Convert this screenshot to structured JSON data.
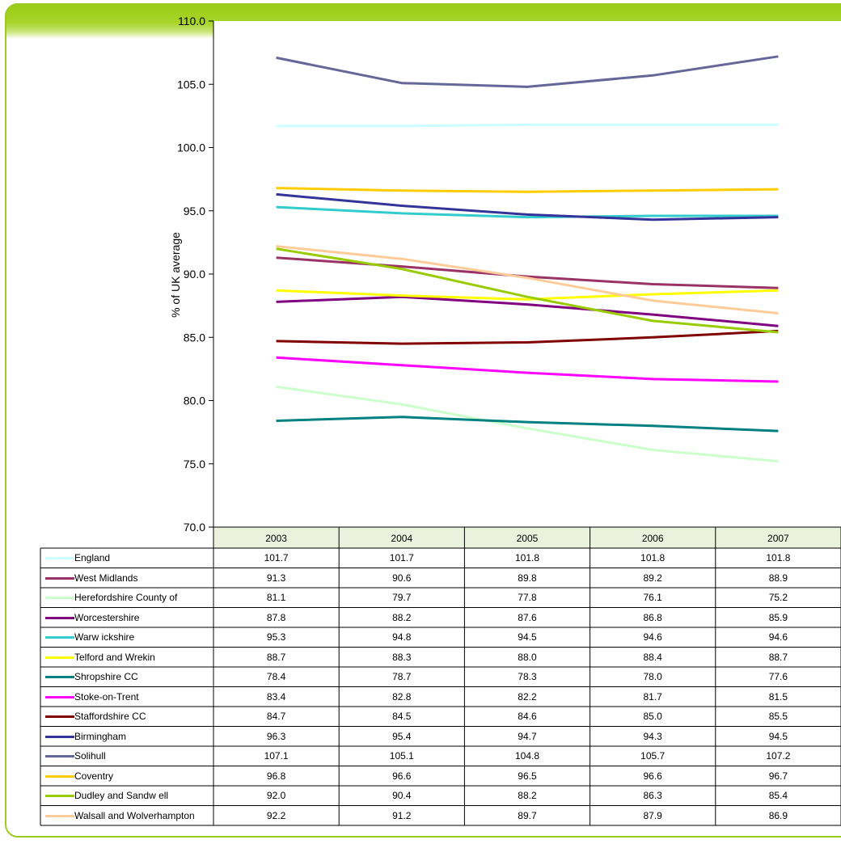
{
  "chart_data": {
    "type": "line",
    "ylabel": "% of UK average",
    "ylim": [
      70.0,
      110.0
    ],
    "yticks": [
      "70.0",
      "75.0",
      "80.0",
      "85.0",
      "90.0",
      "95.0",
      "100.0",
      "105.0",
      "110.0"
    ],
    "categories": [
      "2003",
      "2004",
      "2005",
      "2006",
      "2007"
    ],
    "grid": false,
    "legend": "data-table-below",
    "series": [
      {
        "name": "England",
        "color": "#ccffff",
        "values": [
          "101.7",
          "101.7",
          "101.8",
          "101.8",
          "101.8"
        ]
      },
      {
        "name": "West Midlands",
        "color": "#993366",
        "values": [
          "91.3",
          "90.6",
          "89.8",
          "89.2",
          "88.9"
        ]
      },
      {
        "name": "Herefordshire County of",
        "color": "#ccffcc",
        "values": [
          "81.1",
          "79.7",
          "77.8",
          "76.1",
          "75.2"
        ]
      },
      {
        "name": "Worcestershire",
        "color": "#800080",
        "values": [
          "87.8",
          "88.2",
          "87.6",
          "86.8",
          "85.9"
        ]
      },
      {
        "name": "Warw ickshire",
        "color": "#33cccc",
        "values": [
          "95.3",
          "94.8",
          "94.5",
          "94.6",
          "94.6"
        ]
      },
      {
        "name": "Telford and Wrekin",
        "color": "#ffff00",
        "values": [
          "88.7",
          "88.3",
          "88.0",
          "88.4",
          "88.7"
        ]
      },
      {
        "name": "Shropshire CC",
        "color": "#008080",
        "values": [
          "78.4",
          "78.7",
          "78.3",
          "78.0",
          "77.6"
        ]
      },
      {
        "name": "Stoke-on-Trent",
        "color": "#ff00ff",
        "values": [
          "83.4",
          "82.8",
          "82.2",
          "81.7",
          "81.5"
        ]
      },
      {
        "name": "Staffordshire CC",
        "color": "#800000",
        "values": [
          "84.7",
          "84.5",
          "84.6",
          "85.0",
          "85.5"
        ]
      },
      {
        "name": "Birmingham",
        "color": "#333399",
        "values": [
          "96.3",
          "95.4",
          "94.7",
          "94.3",
          "94.5"
        ]
      },
      {
        "name": "Solihull",
        "color": "#666699",
        "values": [
          "107.1",
          "105.1",
          "104.8",
          "105.7",
          "107.2"
        ]
      },
      {
        "name": "Coventry",
        "color": "#ffcc00",
        "values": [
          "96.8",
          "96.6",
          "96.5",
          "96.6",
          "96.7"
        ]
      },
      {
        "name": "Dudley and Sandw ell",
        "color": "#99cc00",
        "values": [
          "92.0",
          "90.4",
          "88.2",
          "86.3",
          "85.4"
        ]
      },
      {
        "name": "Walsall and Wolverhampton",
        "color": "#ffcc99",
        "values": [
          "92.2",
          "91.2",
          "89.7",
          "87.9",
          "86.9"
        ]
      }
    ]
  }
}
